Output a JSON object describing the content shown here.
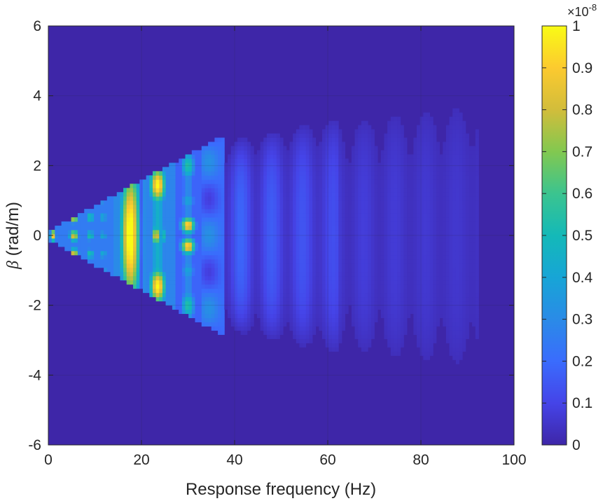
{
  "chart_data": {
    "type": "heatmap",
    "xlabel": "Response frequency (Hz)",
    "ylabel_symbol": "β",
    "ylabel_unit": " (rad/m)",
    "xlim": [
      0,
      100
    ],
    "ylim": [
      -6,
      6
    ],
    "x_ticks": [
      "0",
      "20",
      "40",
      "60",
      "80",
      "100"
    ],
    "y_ticks": [
      "-6",
      "-4",
      "-2",
      "0",
      "2",
      "4",
      "6"
    ],
    "grid": true,
    "colormap": "parula",
    "colorbar": {
      "ticks": [
        "0",
        "0.1",
        "0.2",
        "0.3",
        "0.4",
        "0.5",
        "0.6",
        "0.7",
        "0.8",
        "0.9",
        "1"
      ],
      "exponent_base": "×10",
      "exponent_power": "-8",
      "range": [
        0,
        1
      ]
    },
    "description_of_field": "Response magnitude concentrated in a wedge from 0 Hz at β=0 widening to about ±2.8 rad/m near 37 Hz, with peaks (~1e-8) near 16–19 Hz around β=0 and near 22–25 Hz at β≈±1.4, then weak ripples (~0.1–0.2e-8) extending to ~90 Hz.",
    "hotspots": [
      {
        "f": 1.0,
        "beta": 0.0,
        "value": 0.75
      },
      {
        "f": 5.5,
        "beta": 0.0,
        "value": 0.85
      },
      {
        "f": 9.0,
        "beta": 0.0,
        "value": 0.55
      },
      {
        "f": 11.5,
        "beta": 0.0,
        "value": 0.4
      },
      {
        "f": 17.5,
        "beta": 0.0,
        "value": 1.0
      },
      {
        "f": 23.5,
        "beta": 1.4,
        "value": 0.95
      },
      {
        "f": 23.5,
        "beta": -1.4,
        "value": 0.95
      },
      {
        "f": 24.0,
        "beta": 0.0,
        "value": 0.95
      },
      {
        "f": 30.0,
        "beta": 0.3,
        "value": 0.9
      },
      {
        "f": 30.0,
        "beta": -0.3,
        "value": 0.85
      },
      {
        "f": 30.0,
        "beta": 2.0,
        "value": 0.5
      },
      {
        "f": 30.0,
        "beta": -2.0,
        "value": 0.5
      }
    ]
  }
}
